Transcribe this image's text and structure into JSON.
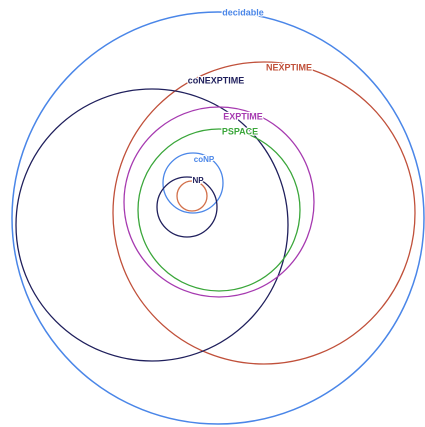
{
  "classes": {
    "decidable": {
      "name": "decidable",
      "color": "#4a86e8"
    },
    "nexptime": {
      "name": "NEXPTIME",
      "color": "#c0503a"
    },
    "conexptime": {
      "name": "coNEXPTIME",
      "color": "#1f1f5c"
    },
    "exptime": {
      "name": "EXPTIME",
      "color": "#a63ab0"
    },
    "pspace": {
      "name": "PSPACE",
      "color": "#3aa63a"
    },
    "conp": {
      "name": "coNP",
      "color": "#4a86e8"
    },
    "np": {
      "name": "NP",
      "color": "#1f1f5c"
    },
    "p": {
      "name": "",
      "color": "#d2704a"
    }
  }
}
